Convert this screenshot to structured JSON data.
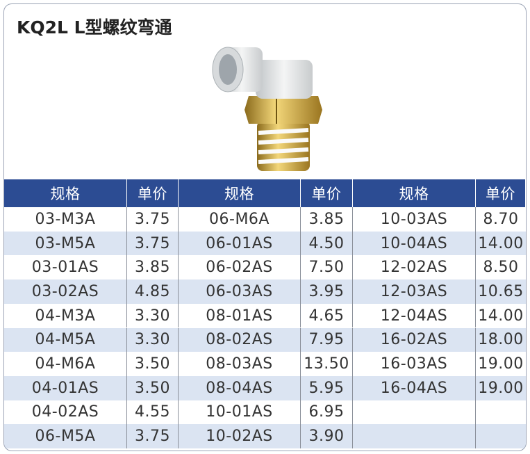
{
  "header": {
    "title": "KQ2L L型螺纹弯通"
  },
  "table": {
    "columns": [
      "规格",
      "单价",
      "规格",
      "单价",
      "规格",
      "单价"
    ],
    "rows": [
      [
        "03-M3A",
        "3.75",
        "06-M6A",
        "3.85",
        "10-03AS",
        "8.70"
      ],
      [
        "03-M5A",
        "3.75",
        "06-01AS",
        "4.50",
        "10-04AS",
        "14.00"
      ],
      [
        "03-01AS",
        "3.85",
        "06-02AS",
        "7.50",
        "12-02AS",
        "8.50"
      ],
      [
        "03-02AS",
        "4.85",
        "06-03AS",
        "3.95",
        "12-03AS",
        "10.65"
      ],
      [
        "04-M3A",
        "3.30",
        "08-01AS",
        "4.65",
        "12-04AS",
        "14.00"
      ],
      [
        "04-M5A",
        "3.30",
        "08-02AS",
        "7.95",
        "16-02AS",
        "18.00"
      ],
      [
        "04-M6A",
        "3.50",
        "08-03AS",
        "13.50",
        "16-03AS",
        "19.00"
      ],
      [
        "04-01AS",
        "3.50",
        "08-04AS",
        "5.95",
        "16-04AS",
        "19.00"
      ],
      [
        "04-02AS",
        "4.55",
        "10-01AS",
        "6.95"
      ],
      [
        "06-M5A",
        "3.75",
        "10-02AS",
        "3.90"
      ]
    ]
  }
}
